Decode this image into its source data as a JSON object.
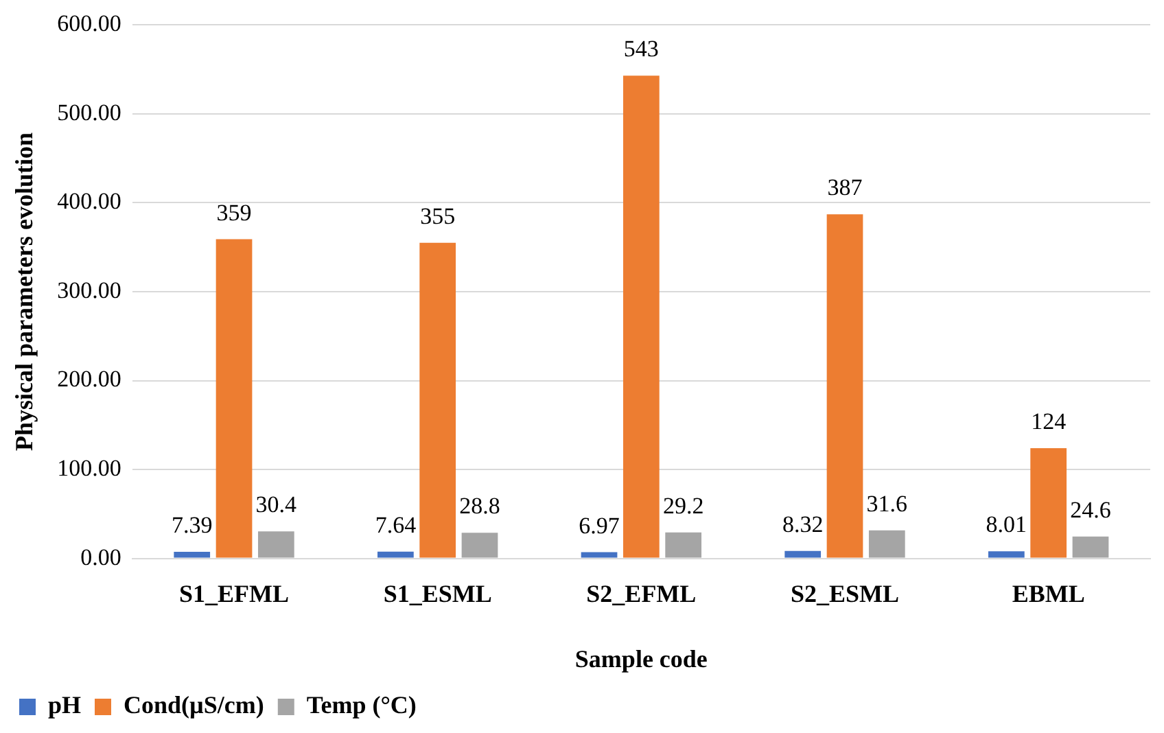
{
  "chart_data": {
    "type": "bar",
    "xlabel": "Sample code",
    "ylabel": "Physical parameters evolution",
    "categories": [
      "S1_EFML",
      "S1_ESML",
      "S2_EFML",
      "S2_ESML",
      "EBML"
    ],
    "series": [
      {
        "name": "pH",
        "color": "#4472c4",
        "values": [
          7.39,
          7.64,
          6.97,
          8.32,
          8.01
        ]
      },
      {
        "name": "Cond(µS/cm)",
        "color": "#ed7d31",
        "values": [
          359,
          355,
          543,
          387,
          124
        ]
      },
      {
        "name": "Temp (°C)",
        "color": "#a5a5a5",
        "values": [
          30.4,
          28.8,
          29.2,
          31.6,
          24.6
        ]
      }
    ],
    "ylim": [
      0,
      600
    ],
    "yticks": [
      {
        "value": 0,
        "label": "0.00"
      },
      {
        "value": 100,
        "label": "100.00"
      },
      {
        "value": 200,
        "label": "200.00"
      },
      {
        "value": 300,
        "label": "300.00"
      },
      {
        "value": 400,
        "label": "400.00"
      },
      {
        "value": 500,
        "label": "500.00"
      },
      {
        "value": 600,
        "label": "600.00"
      }
    ],
    "grid": "y",
    "legend": "bottom left",
    "data_labels": true
  }
}
